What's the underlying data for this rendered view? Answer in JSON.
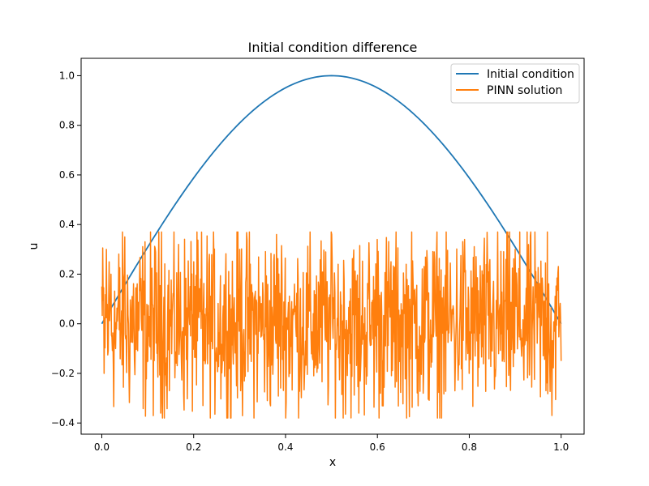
{
  "chart_data": {
    "type": "line",
    "title": "Initial condition difference",
    "xlabel": "x",
    "ylabel": "u",
    "xlim": [
      -0.045,
      1.05
    ],
    "ylim": [
      -0.445,
      1.07
    ],
    "xticks": [
      0.0,
      0.2,
      0.4,
      0.6,
      0.8,
      1.0
    ],
    "xtick_labels": [
      "0.0",
      "0.2",
      "0.4",
      "0.6",
      "0.8",
      "1.0"
    ],
    "yticks": [
      -0.4,
      -0.2,
      0.0,
      0.2,
      0.4,
      0.6,
      0.8,
      1.0
    ],
    "ytick_labels": [
      "−0.4",
      "−0.2",
      "0.0",
      "0.2",
      "0.4",
      "0.6",
      "0.8",
      "1.0"
    ],
    "grid": false,
    "legend_position": "top-right",
    "series": [
      {
        "name": "Initial condition",
        "color": "#1f77b4",
        "function": "sin(pi*x)",
        "x": [
          0.0,
          0.05,
          0.1,
          0.15,
          0.2,
          0.25,
          0.3,
          0.35,
          0.4,
          0.45,
          0.5,
          0.55,
          0.6,
          0.65,
          0.7,
          0.75,
          0.8,
          0.85,
          0.9,
          0.95,
          1.0
        ],
        "y": [
          0.0,
          0.156,
          0.309,
          0.454,
          0.588,
          0.707,
          0.809,
          0.891,
          0.951,
          0.988,
          1.0,
          0.988,
          0.951,
          0.891,
          0.809,
          0.707,
          0.588,
          0.454,
          0.309,
          0.156,
          0.0
        ]
      },
      {
        "name": "PINN solution",
        "color": "#ff7f0e",
        "x_range": [
          0.0,
          1.0
        ],
        "points": 1000,
        "approx_y_range": [
          -0.38,
          0.37
        ],
        "x": [
          0.0,
          0.005,
          0.01,
          0.015,
          0.02,
          0.03,
          0.05,
          0.07,
          0.1,
          0.13,
          0.14,
          0.2,
          0.22,
          0.28,
          0.3,
          0.36,
          0.38,
          0.5,
          0.56,
          0.6,
          0.63,
          0.7,
          0.79,
          0.8,
          0.9,
          0.97,
          0.98,
          1.0
        ],
        "y": [
          0.15,
          -0.2,
          0.3,
          0.1,
          0.2,
          -0.1,
          0.35,
          0.0,
          -0.15,
          0.37,
          -0.25,
          0.25,
          -0.33,
          -0.38,
          0.3,
          -0.31,
          0.36,
          0.36,
          -0.36,
          0.34,
          0.25,
          -0.28,
          0.34,
          -0.2,
          0.3,
          0.37,
          -0.37,
          -0.15
        ]
      }
    ]
  }
}
